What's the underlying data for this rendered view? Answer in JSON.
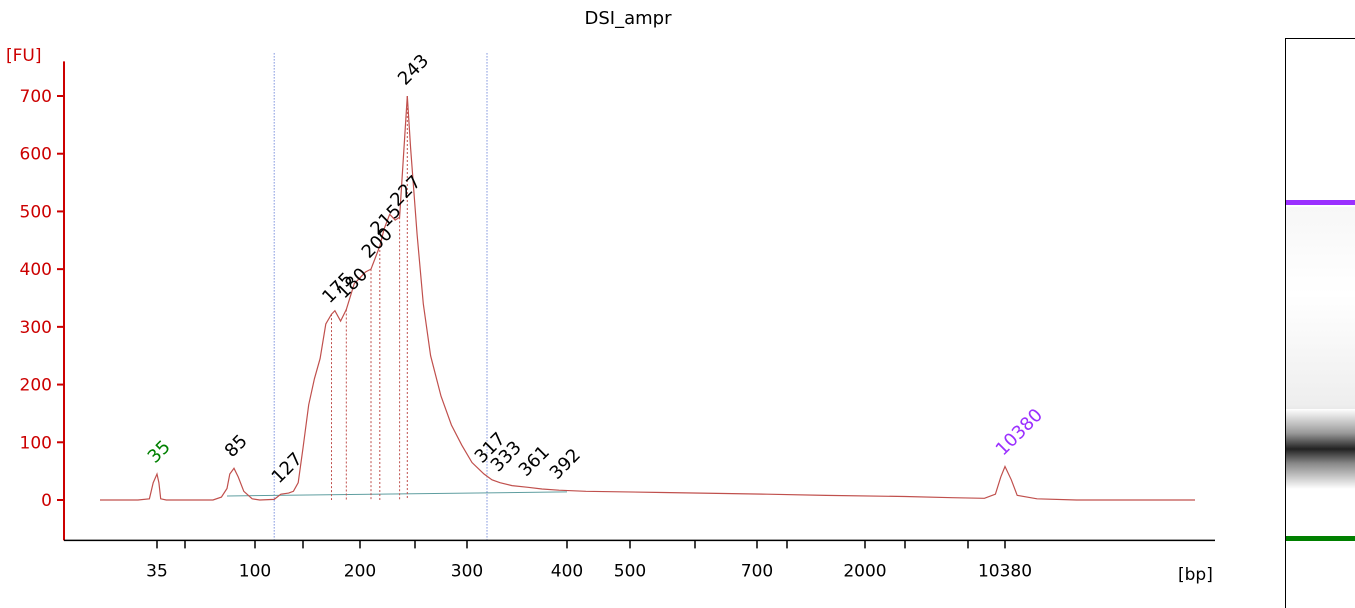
{
  "chart_data": {
    "type": "line",
    "title": "DSI_ampr",
    "ylabel": "[FU]",
    "xlabel": "[bp]",
    "ylim": [
      -70,
      760
    ],
    "yticks": [
      0,
      100,
      200,
      300,
      400,
      500,
      600,
      700
    ],
    "x_tick_labels": [
      "35",
      "100",
      "200",
      "300",
      "400",
      "500",
      "700",
      "2000",
      "10380"
    ],
    "x_tick_marks_bp": [
      35,
      50,
      100,
      150,
      200,
      250,
      300,
      400,
      500,
      600,
      700,
      1000,
      2000,
      3000,
      7000,
      10380
    ],
    "x_tick_labeled_bp": [
      35,
      100,
      200,
      300,
      400,
      500,
      700,
      2000,
      10380
    ],
    "region_markers_bp": [
      120,
      320
    ],
    "colors": {
      "trace": "#c0504d",
      "axis": "#cc0000",
      "lower_marker": "#008000",
      "upper_marker": "#9b30ff",
      "peak_label": "#000000",
      "region_line": "#3b5bcc",
      "baseline": "#5f9ea0"
    },
    "peaks": [
      {
        "label": "35",
        "bp": 35,
        "fu": 45,
        "color": "#008000"
      },
      {
        "label": "85",
        "bp": 85,
        "fu": 55,
        "color": "#000000"
      },
      {
        "label": "127",
        "bp": 127,
        "fu": 10,
        "color": "#000000"
      },
      {
        "label": "175",
        "bp": 175,
        "fu": 322,
        "color": "#000000"
      },
      {
        "label": "180",
        "bp": 188,
        "fu": 330,
        "color": "#000000"
      },
      {
        "label": "200",
        "bp": 210,
        "fu": 400,
        "color": "#000000"
      },
      {
        "label": "215",
        "bp": 218,
        "fu": 440,
        "color": "#000000"
      },
      {
        "label": "227",
        "bp": 236,
        "fu": 490,
        "color": "#000000"
      },
      {
        "label": "243",
        "bp": 243,
        "fu": 700,
        "color": "#000000"
      },
      {
        "label": "317",
        "bp": 317,
        "fu": 45,
        "color": "#000000"
      },
      {
        "label": "333",
        "bp": 333,
        "fu": 30,
        "color": "#000000"
      },
      {
        "label": "361",
        "bp": 361,
        "fu": 22,
        "color": "#000000"
      },
      {
        "label": "392",
        "bp": 392,
        "fu": 17,
        "color": "#000000"
      },
      {
        "label": "10380",
        "bp": 10380,
        "fu": 58,
        "color": "#9b30ff"
      }
    ],
    "trace": [
      [
        20,
        0
      ],
      [
        30,
        0
      ],
      [
        33,
        2
      ],
      [
        34,
        30
      ],
      [
        35,
        45
      ],
      [
        36,
        30
      ],
      [
        37,
        2
      ],
      [
        40,
        0
      ],
      [
        70,
        0
      ],
      [
        76,
        5
      ],
      [
        80,
        20
      ],
      [
        82,
        45
      ],
      [
        85,
        55
      ],
      [
        88,
        40
      ],
      [
        92,
        15
      ],
      [
        98,
        2
      ],
      [
        105,
        0
      ],
      [
        120,
        1
      ],
      [
        127,
        10
      ],
      [
        135,
        12
      ],
      [
        140,
        15
      ],
      [
        145,
        30
      ],
      [
        150,
        90
      ],
      [
        155,
        165
      ],
      [
        160,
        210
      ],
      [
        165,
        245
      ],
      [
        170,
        305
      ],
      [
        175,
        322
      ],
      [
        178,
        328
      ],
      [
        183,
        310
      ],
      [
        188,
        330
      ],
      [
        195,
        375
      ],
      [
        200,
        385
      ],
      [
        205,
        395
      ],
      [
        210,
        400
      ],
      [
        214,
        420
      ],
      [
        218,
        440
      ],
      [
        222,
        470
      ],
      [
        227,
        495
      ],
      [
        232,
        485
      ],
      [
        236,
        490
      ],
      [
        240,
        610
      ],
      [
        243,
        700
      ],
      [
        246,
        610
      ],
      [
        252,
        460
      ],
      [
        258,
        340
      ],
      [
        265,
        250
      ],
      [
        275,
        180
      ],
      [
        285,
        130
      ],
      [
        295,
        95
      ],
      [
        305,
        65
      ],
      [
        317,
        45
      ],
      [
        325,
        35
      ],
      [
        333,
        30
      ],
      [
        345,
        25
      ],
      [
        361,
        22
      ],
      [
        375,
        19
      ],
      [
        392,
        17
      ],
      [
        430,
        15
      ],
      [
        550,
        13
      ],
      [
        800,
        10
      ],
      [
        1500,
        8
      ],
      [
        3000,
        6
      ],
      [
        6000,
        4
      ],
      [
        8500,
        3
      ],
      [
        9500,
        10
      ],
      [
        10000,
        40
      ],
      [
        10380,
        58
      ],
      [
        10700,
        35
      ],
      [
        11000,
        8
      ],
      [
        12000,
        2
      ],
      [
        14000,
        0
      ],
      [
        20000,
        0
      ]
    ]
  },
  "gel": {
    "upper_marker_color": "#9b30ff",
    "lower_marker_color": "#008000",
    "sample_band_fu": 700
  }
}
